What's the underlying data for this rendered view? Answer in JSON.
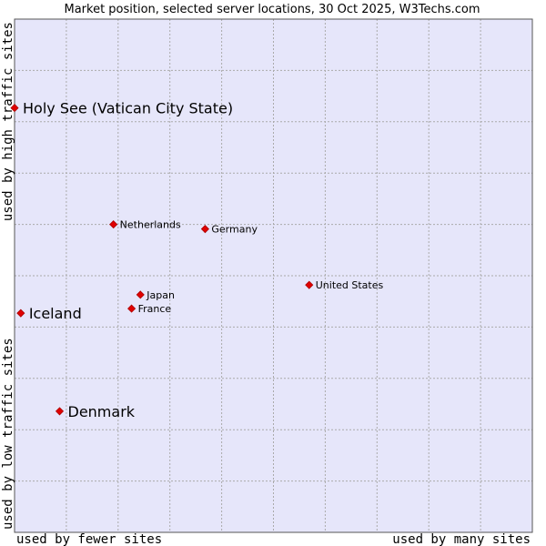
{
  "chart_data": {
    "type": "scatter",
    "title": "Market position, selected server locations, 30 Oct 2025, W3Techs.com",
    "x_axis": {
      "low_label": "used by fewer sites",
      "high_label": "used by many sites"
    },
    "y_axis": {
      "low_label": "used by low traffic sites",
      "high_label": "used by high traffic sites"
    },
    "xlim": [
      0,
      100
    ],
    "ylim": [
      0,
      100
    ],
    "grid": true,
    "colors": {
      "plot_bg": "#e6e6fa",
      "grid": "#aaaaaa",
      "marker": "#e00000",
      "marker_edge": "#aa0000"
    },
    "points": [
      {
        "name": "Holy See (Vatican City State)",
        "x": 0.0,
        "y": 82.7,
        "emphasis": true
      },
      {
        "name": "Netherlands",
        "x": 19.1,
        "y": 60.0,
        "emphasis": false
      },
      {
        "name": "Germany",
        "x": 36.8,
        "y": 59.1,
        "emphasis": false
      },
      {
        "name": "United States",
        "x": 56.9,
        "y": 48.2,
        "emphasis": false
      },
      {
        "name": "Japan",
        "x": 24.3,
        "y": 46.3,
        "emphasis": false
      },
      {
        "name": "France",
        "x": 22.6,
        "y": 43.6,
        "emphasis": false
      },
      {
        "name": "Iceland",
        "x": 1.2,
        "y": 42.7,
        "emphasis": true
      },
      {
        "name": "Denmark",
        "x": 8.7,
        "y": 23.6,
        "emphasis": true
      }
    ]
  }
}
